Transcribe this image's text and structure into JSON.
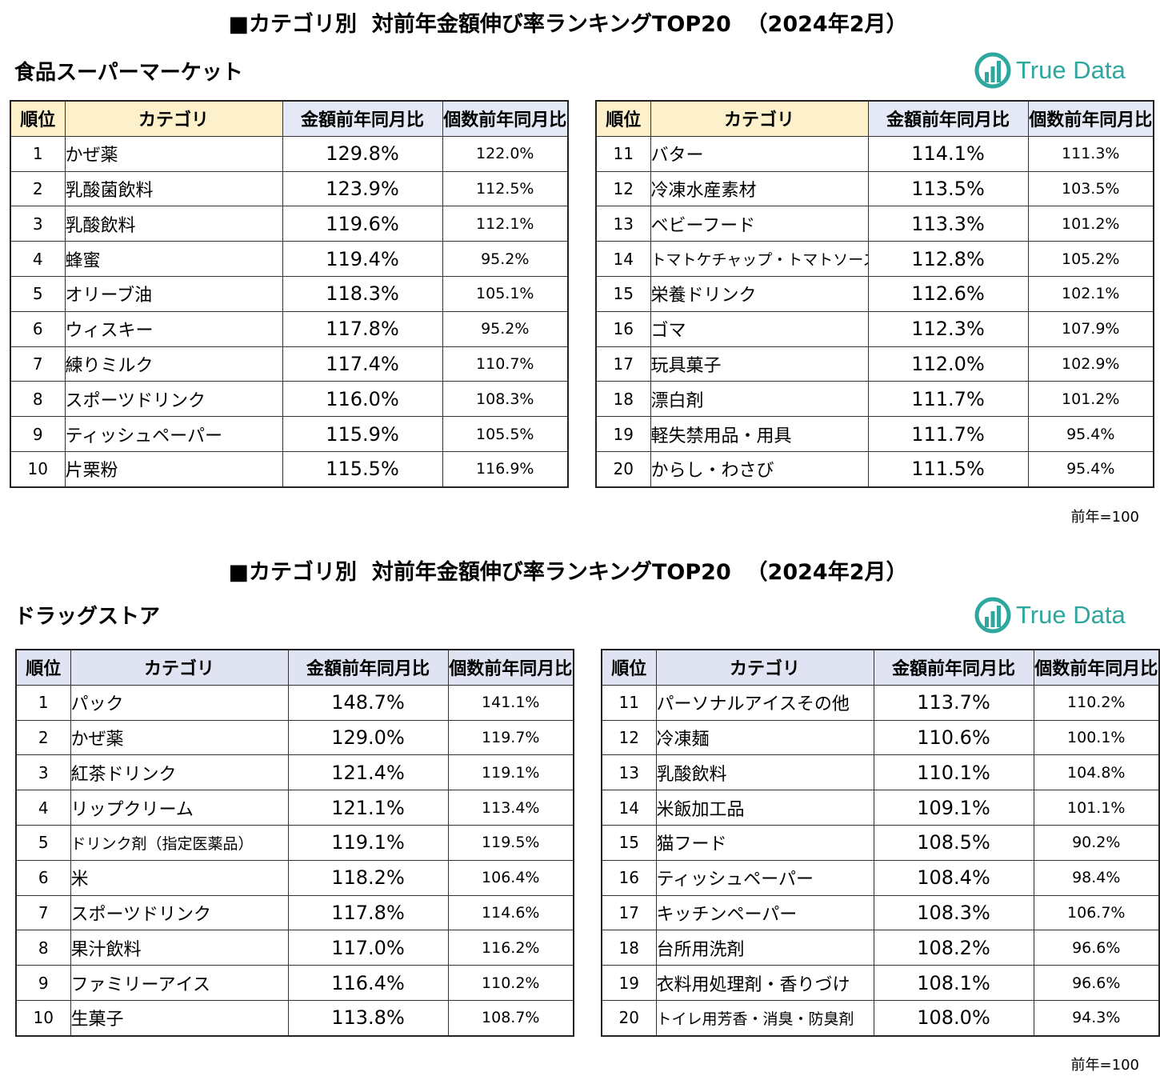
{
  "sections": [
    {
      "title": "■カテゴリ別  対前年金額伸び率ランキングTOP20  （2024年2月）",
      "subtitle": "食品スーパーマーケット",
      "logo_text": "True Data",
      "headers": {
        "rank": "順位",
        "category": "カテゴリ",
        "amount": "金額前年同月比",
        "quantity": "個数前年同月比"
      },
      "left_rows": [
        {
          "rank": "1",
          "category": "かぜ薬",
          "amount": "129.8%",
          "quantity": "122.0%"
        },
        {
          "rank": "2",
          "category": "乳酸菌飲料",
          "amount": "123.9%",
          "quantity": "112.5%"
        },
        {
          "rank": "3",
          "category": "乳酸飲料",
          "amount": "119.6%",
          "quantity": "112.1%"
        },
        {
          "rank": "4",
          "category": "蜂蜜",
          "amount": "119.4%",
          "quantity": "95.2%"
        },
        {
          "rank": "5",
          "category": "オリーブ油",
          "amount": "118.3%",
          "quantity": "105.1%"
        },
        {
          "rank": "6",
          "category": "ウィスキー",
          "amount": "117.8%",
          "quantity": "95.2%"
        },
        {
          "rank": "7",
          "category": "練りミルク",
          "amount": "117.4%",
          "quantity": "110.7%"
        },
        {
          "rank": "8",
          "category": "スポーツドリンク",
          "amount": "116.0%",
          "quantity": "108.3%"
        },
        {
          "rank": "9",
          "category": "ティッシュペーパー",
          "amount": "115.9%",
          "quantity": "105.5%"
        },
        {
          "rank": "10",
          "category": "片栗粉",
          "amount": "115.5%",
          "quantity": "116.9%"
        }
      ],
      "right_rows": [
        {
          "rank": "11",
          "category": "バター",
          "amount": "114.1%",
          "quantity": "111.3%"
        },
        {
          "rank": "12",
          "category": "冷凍水産素材",
          "amount": "113.5%",
          "quantity": "103.5%"
        },
        {
          "rank": "13",
          "category": "ベビーフード",
          "amount": "113.3%",
          "quantity": "101.2%"
        },
        {
          "rank": "14",
          "category": "トマトケチャップ・トマトソース",
          "amount": "112.8%",
          "quantity": "105.2%"
        },
        {
          "rank": "15",
          "category": "栄養ドリンク",
          "amount": "112.6%",
          "quantity": "102.1%"
        },
        {
          "rank": "16",
          "category": "ゴマ",
          "amount": "112.3%",
          "quantity": "107.9%"
        },
        {
          "rank": "17",
          "category": "玩具菓子",
          "amount": "112.0%",
          "quantity": "102.9%"
        },
        {
          "rank": "18",
          "category": "漂白剤",
          "amount": "111.7%",
          "quantity": "101.2%"
        },
        {
          "rank": "19",
          "category": "軽失禁用品・用具",
          "amount": "111.7%",
          "quantity": "95.4%"
        },
        {
          "rank": "20",
          "category": "からし・わさび",
          "amount": "111.5%",
          "quantity": "95.4%"
        }
      ],
      "note": "前年=100"
    },
    {
      "title": "■カテゴリ別  対前年金額伸び率ランキングTOP20  （2024年2月）",
      "subtitle": "ドラッグストア",
      "logo_text": "True Data",
      "headers": {
        "rank": "順位",
        "category": "カテゴリ",
        "amount": "金額前年同月比",
        "quantity": "個数前年同月比"
      },
      "left_rows": [
        {
          "rank": "1",
          "category": "パック",
          "amount": "148.7%",
          "quantity": "141.1%"
        },
        {
          "rank": "2",
          "category": "かぜ薬",
          "amount": "129.0%",
          "quantity": "119.7%"
        },
        {
          "rank": "3",
          "category": "紅茶ドリンク",
          "amount": "121.4%",
          "quantity": "119.1%"
        },
        {
          "rank": "4",
          "category": "リップクリーム",
          "amount": "121.1%",
          "quantity": "113.4%"
        },
        {
          "rank": "5",
          "category": "ドリンク剤（指定医薬品）",
          "amount": "119.1%",
          "quantity": "119.5%"
        },
        {
          "rank": "6",
          "category": "米",
          "amount": "118.2%",
          "quantity": "106.4%"
        },
        {
          "rank": "7",
          "category": "スポーツドリンク",
          "amount": "117.8%",
          "quantity": "114.6%"
        },
        {
          "rank": "8",
          "category": "果汁飲料",
          "amount": "117.0%",
          "quantity": "116.2%"
        },
        {
          "rank": "9",
          "category": "ファミリーアイス",
          "amount": "116.4%",
          "quantity": "110.2%"
        },
        {
          "rank": "10",
          "category": "生菓子",
          "amount": "113.8%",
          "quantity": "108.7%"
        }
      ],
      "right_rows": [
        {
          "rank": "11",
          "category": "パーソナルアイスその他",
          "amount": "113.7%",
          "quantity": "110.2%"
        },
        {
          "rank": "12",
          "category": "冷凍麺",
          "amount": "110.6%",
          "quantity": "100.1%"
        },
        {
          "rank": "13",
          "category": "乳酸飲料",
          "amount": "110.1%",
          "quantity": "104.8%"
        },
        {
          "rank": "14",
          "category": "米飯加工品",
          "amount": "109.1%",
          "quantity": "101.1%"
        },
        {
          "rank": "15",
          "category": "猫フード",
          "amount": "108.5%",
          "quantity": "90.2%"
        },
        {
          "rank": "16",
          "category": "ティッシュペーパー",
          "amount": "108.4%",
          "quantity": "98.4%"
        },
        {
          "rank": "17",
          "category": "キッチンペーパー",
          "amount": "108.3%",
          "quantity": "106.7%"
        },
        {
          "rank": "18",
          "category": "台所用洗剤",
          "amount": "108.2%",
          "quantity": "96.6%"
        },
        {
          "rank": "19",
          "category": "衣料用処理剤・香りづけ",
          "amount": "108.1%",
          "quantity": "96.6%"
        },
        {
          "rank": "20",
          "category": "トイレ用芳香・消臭・防臭剤",
          "amount": "108.0%",
          "quantity": "94.3%"
        }
      ],
      "note": "前年=100"
    }
  ]
}
